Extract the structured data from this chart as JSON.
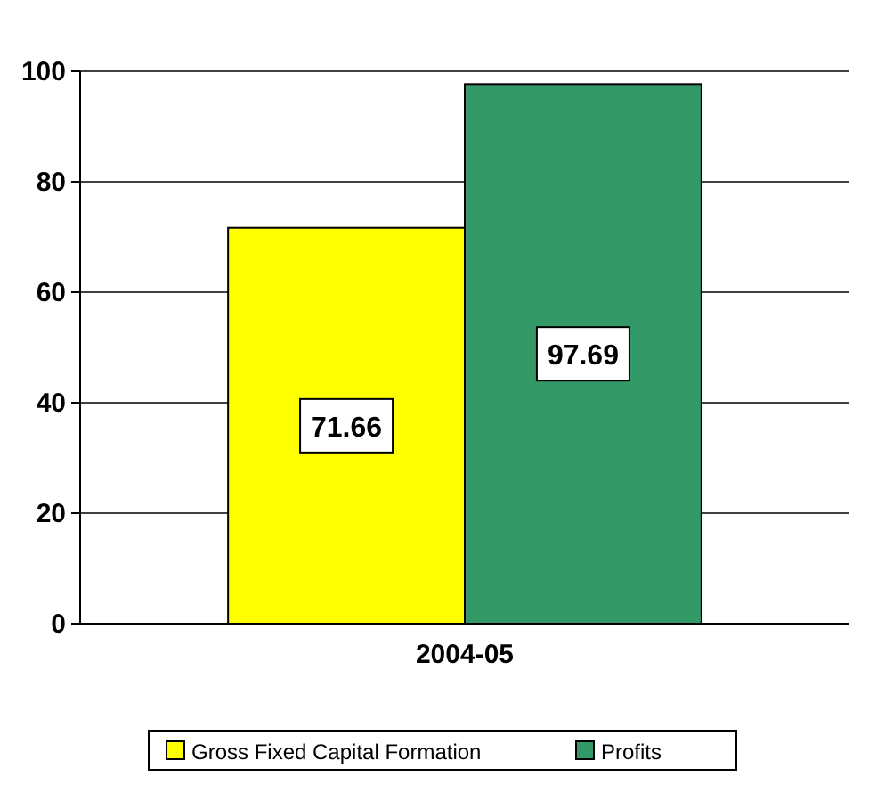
{
  "chart_data": {
    "type": "bar",
    "categories": [
      "2004-05"
    ],
    "series": [
      {
        "name": "Gross Fixed Capital Formation",
        "color": "#ffff00",
        "values": [
          71.66
        ]
      },
      {
        "name": "Profits",
        "color": "#339966",
        "values": [
          97.69
        ]
      }
    ],
    "ylim": [
      0,
      100
    ],
    "yticks": [
      0,
      20,
      40,
      60,
      80,
      100
    ],
    "grid": "y",
    "legend": "bottom",
    "data_labels": true
  }
}
